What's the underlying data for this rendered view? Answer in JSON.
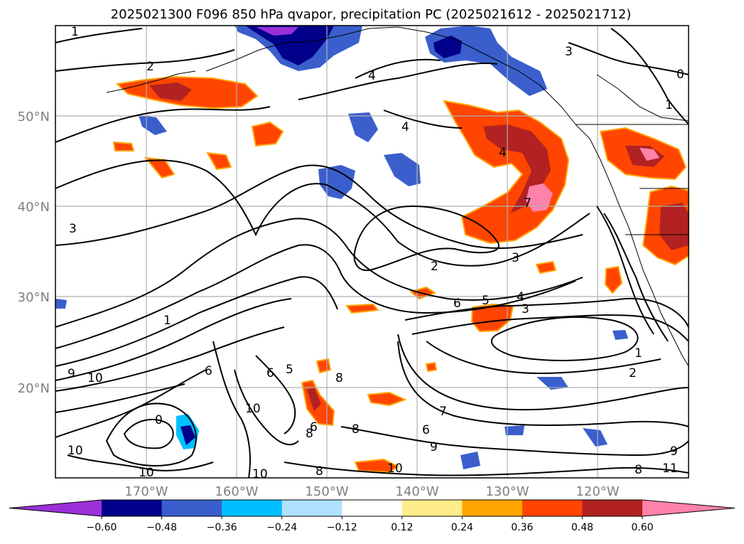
{
  "title": "2025021300 F096 850 hPa qvapor, precipitation PC (2025021612 - 2025021712)",
  "lat_labels": [
    "50°N",
    "40°N",
    "30°N",
    "20°N"
  ],
  "lon_labels": [
    "170°W",
    "160°W",
    "150°W",
    "140°W",
    "130°W",
    "120°W"
  ],
  "colorbar": {
    "ticks": [
      "−0.60",
      "−0.48",
      "−0.36",
      "−0.24",
      "−0.12",
      "0.12",
      "0.24",
      "0.36",
      "0.48",
      "0.60"
    ],
    "colors": [
      "#9b30d9",
      "#00008b",
      "#3a5fcd",
      "#00bfff",
      "#b0e2ff",
      "#ffffff",
      "#ffec8b",
      "#ffa500",
      "#ff4500",
      "#b22222",
      "#ff82ab"
    ],
    "extend": "both"
  },
  "contour_labels": [
    "1",
    "2",
    "4",
    "3",
    "0",
    "1",
    "4",
    "4",
    "7",
    "3",
    "2",
    "3",
    "6",
    "5",
    "4",
    "3",
    "1",
    "2",
    "1",
    "9",
    "10",
    "6",
    "5",
    "6",
    "8",
    "0",
    "10",
    "8",
    "7",
    "6",
    "9",
    "6",
    "8",
    "8",
    "10",
    "10",
    "10",
    "8",
    "10",
    "9",
    "11"
  ],
  "colors": {
    "contour": "#000000",
    "grid": "#b0b0b0",
    "axis_text": "#7f7f7f"
  }
}
